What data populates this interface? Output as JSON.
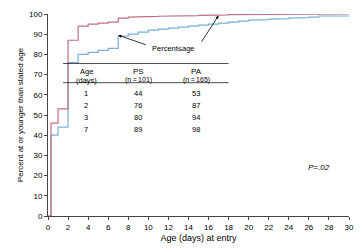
{
  "chart_data": {
    "type": "line",
    "xlabel": "Age (days) at entry",
    "ylabel": "Percent at or younger than stated age",
    "xlim": [
      0,
      30
    ],
    "ylim": [
      0,
      100
    ],
    "xticks": [
      0,
      2,
      4,
      6,
      8,
      10,
      12,
      14,
      16,
      18,
      20,
      22,
      24,
      26,
      28,
      30
    ],
    "yticks": [
      0,
      10,
      20,
      30,
      40,
      50,
      60,
      70,
      80,
      90,
      100
    ],
    "grid": false,
    "series": [
      {
        "name": "PS",
        "n_label": "(n = 101)",
        "color": "#7bafd4",
        "x": [
          0,
          0.3,
          0.3,
          1,
          1,
          2,
          2,
          3,
          3,
          4,
          4,
          5,
          5,
          6,
          6,
          7,
          7,
          8,
          8,
          9,
          9,
          10,
          10,
          11,
          11,
          12,
          12,
          13,
          13,
          14,
          14,
          15,
          15,
          16,
          16,
          17,
          17,
          18,
          18,
          19,
          19,
          20,
          20,
          21,
          21,
          22,
          22,
          23,
          23,
          24,
          24,
          25,
          25,
          26,
          26,
          27,
          27,
          30
        ],
        "values": [
          0,
          0,
          40,
          40,
          44,
          44,
          76,
          76,
          80,
          80,
          81,
          81,
          82,
          82,
          83,
          83,
          89,
          89,
          90,
          90,
          91,
          91,
          92,
          92,
          92.5,
          92.5,
          93,
          93,
          93.5,
          93.5,
          94,
          94,
          94.5,
          94.5,
          95,
          95,
          95.5,
          95.5,
          96,
          96,
          96.5,
          96.5,
          97,
          97,
          97.2,
          97.2,
          97.5,
          97.5,
          97.7,
          97.7,
          98,
          98,
          98.2,
          98.2,
          98.5,
          98.5,
          99,
          99
        ],
        "table_values": [
          44,
          76,
          80,
          89
        ]
      },
      {
        "name": "PA",
        "n_label": "(n = 165)",
        "color": "#c07080",
        "x": [
          0,
          0.3,
          0.3,
          1,
          1,
          2,
          2,
          3,
          3,
          4,
          4,
          5,
          5,
          6,
          6,
          7,
          7,
          8,
          8,
          9,
          9,
          10,
          10,
          11,
          11,
          12,
          12,
          13,
          13,
          14,
          14,
          15,
          15,
          16,
          16,
          17,
          17,
          18,
          18,
          19,
          19,
          20,
          20,
          26,
          26,
          30
        ],
        "values": [
          0,
          0,
          46,
          46,
          53,
          53,
          87,
          87,
          94,
          94,
          95,
          95,
          95.5,
          95.5,
          96,
          96,
          98,
          98,
          98.5,
          98.5,
          98.7,
          98.7,
          98.8,
          98.8,
          98.9,
          98.9,
          99,
          99,
          99.1,
          99.1,
          99.2,
          99.2,
          99.3,
          99.3,
          99.5,
          99.5,
          99.6,
          99.6,
          99.7,
          99.7,
          99.8,
          99.8,
          99.9,
          99.9,
          100,
          100
        ],
        "table_values": [
          53,
          87,
          94,
          98
        ]
      }
    ],
    "table": {
      "age_label": [
        "Age",
        "(days)"
      ],
      "ages": [
        1,
        2,
        3,
        7
      ]
    },
    "annotations": [
      "Percent≤age",
      "P=.02"
    ]
  }
}
